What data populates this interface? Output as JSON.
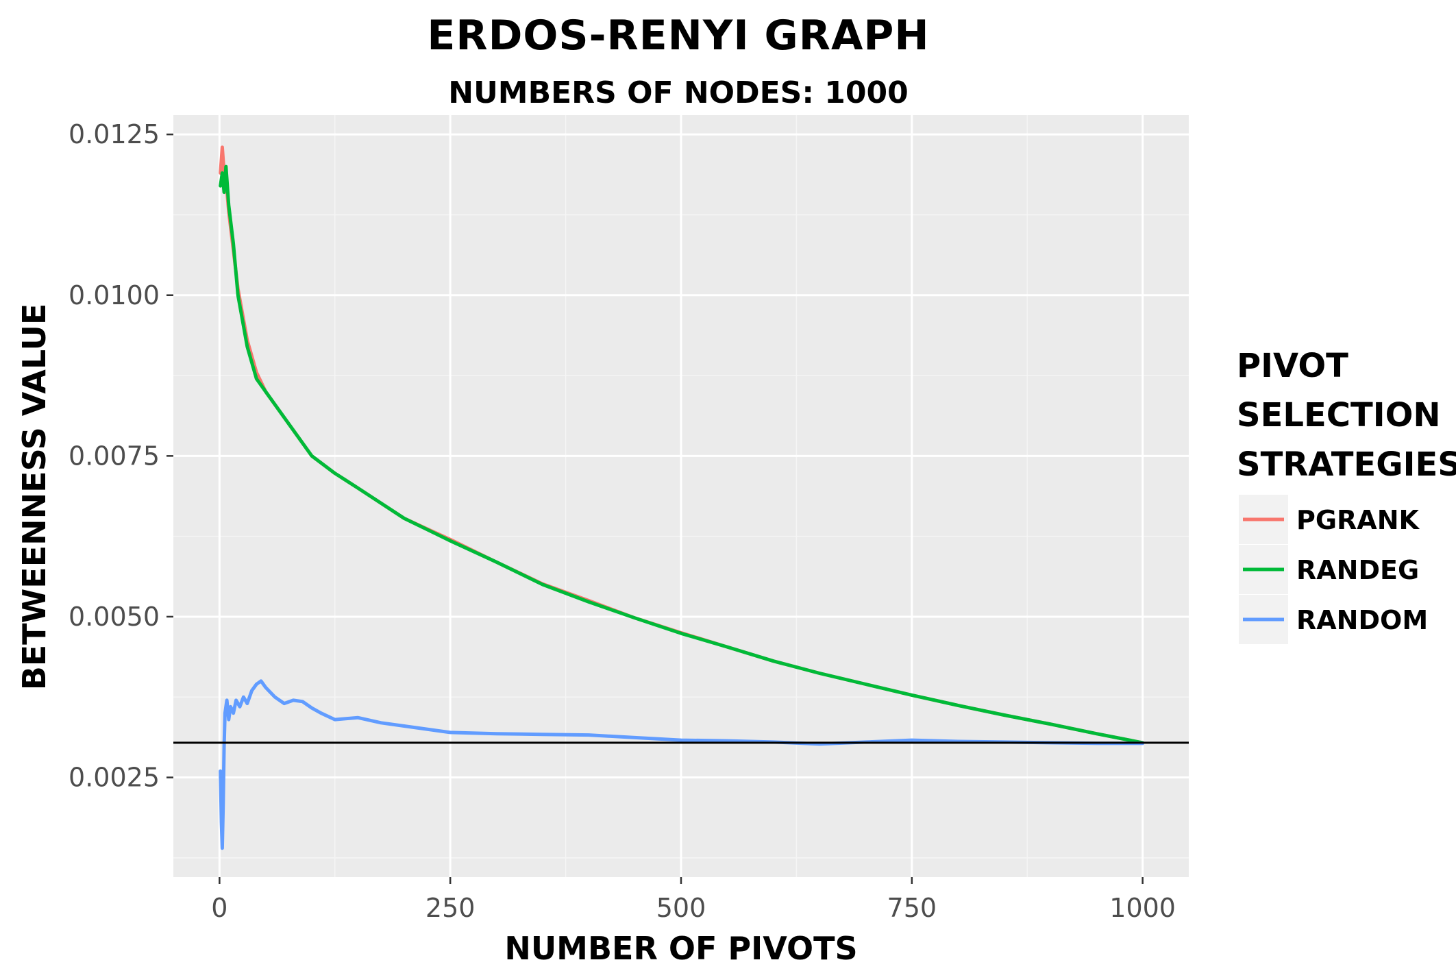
{
  "chart_data": {
    "type": "line",
    "title": "ERDOS-RENYI GRAPH",
    "subtitle": "NUMBERS OF NODES: 1000",
    "xlabel": "NUMBER OF PIVOTS",
    "ylabel": "BETWEENNESS VALUE",
    "xlim": [
      -50,
      1050
    ],
    "ylim": [
      0.00095,
      0.0128
    ],
    "x_ticks": [
      0,
      250,
      500,
      750,
      1000
    ],
    "x_tick_labels": [
      "0",
      "250",
      "500",
      "750",
      "1000"
    ],
    "y_ticks": [
      0.0025,
      0.005,
      0.0075,
      0.01,
      0.0125
    ],
    "y_tick_labels": [
      "0.0025",
      "0.0050",
      "0.0075",
      "0.0100",
      "0.0125"
    ],
    "grid": true,
    "legend": {
      "title": [
        "PIVOT",
        "SELECTION",
        "STRATEGIES"
      ],
      "position": "right"
    },
    "reference_line": {
      "y": 0.00304,
      "color": "#000000"
    },
    "series": [
      {
        "name": "PGRANK",
        "color": "#F8766D",
        "x": [
          1,
          3,
          5,
          7,
          10,
          15,
          20,
          30,
          40,
          50,
          60,
          80,
          100,
          125,
          150,
          200,
          250,
          300,
          350,
          400,
          450,
          500,
          550,
          600,
          650,
          700,
          750,
          800,
          850,
          900,
          950,
          1000
        ],
        "y": [
          0.0119,
          0.0123,
          0.0119,
          0.0118,
          0.0113,
          0.0107,
          0.0101,
          0.0093,
          0.0088,
          0.0085,
          0.0083,
          0.0079,
          0.0075,
          0.00723,
          0.007,
          0.00653,
          0.0062,
          0.00585,
          0.00551,
          0.00525,
          0.00498,
          0.00475,
          0.00453,
          0.00431,
          0.00412,
          0.00395,
          0.00378,
          0.00362,
          0.00347,
          0.00333,
          0.00318,
          0.00304
        ]
      },
      {
        "name": "RANDEG",
        "color": "#00BA38",
        "x": [
          1,
          3,
          5,
          7,
          10,
          15,
          20,
          30,
          40,
          50,
          60,
          80,
          100,
          125,
          150,
          200,
          250,
          300,
          350,
          400,
          450,
          500,
          550,
          600,
          650,
          700,
          750,
          800,
          850,
          900,
          950,
          1000
        ],
        "y": [
          0.0117,
          0.0119,
          0.0116,
          0.012,
          0.0114,
          0.0108,
          0.01,
          0.0092,
          0.0087,
          0.0085,
          0.0083,
          0.0079,
          0.0075,
          0.00723,
          0.007,
          0.00653,
          0.00618,
          0.00585,
          0.0055,
          0.00523,
          0.00498,
          0.00474,
          0.00453,
          0.00431,
          0.00412,
          0.00395,
          0.00378,
          0.00362,
          0.00347,
          0.00333,
          0.00318,
          0.00304
        ]
      },
      {
        "name": "RANDOM",
        "color": "#619CFF",
        "x": [
          1,
          2,
          3,
          4,
          5,
          6,
          8,
          10,
          12,
          15,
          18,
          22,
          26,
          30,
          35,
          40,
          45,
          50,
          60,
          70,
          80,
          90,
          100,
          110,
          125,
          150,
          175,
          200,
          250,
          300,
          350,
          400,
          450,
          500,
          550,
          600,
          650,
          700,
          750,
          800,
          850,
          900,
          950,
          1000
        ],
        "y": [
          0.0026,
          0.0018,
          0.0014,
          0.0021,
          0.003,
          0.0035,
          0.0037,
          0.0034,
          0.0036,
          0.0035,
          0.0037,
          0.0036,
          0.00375,
          0.00365,
          0.00385,
          0.00395,
          0.004,
          0.0039,
          0.00375,
          0.00365,
          0.0037,
          0.00368,
          0.00358,
          0.0035,
          0.0034,
          0.00343,
          0.00335,
          0.0033,
          0.0032,
          0.00318,
          0.00317,
          0.00316,
          0.00312,
          0.00308,
          0.00307,
          0.00305,
          0.00302,
          0.00305,
          0.00308,
          0.00306,
          0.00305,
          0.00304,
          0.00303,
          0.00303
        ]
      }
    ]
  }
}
